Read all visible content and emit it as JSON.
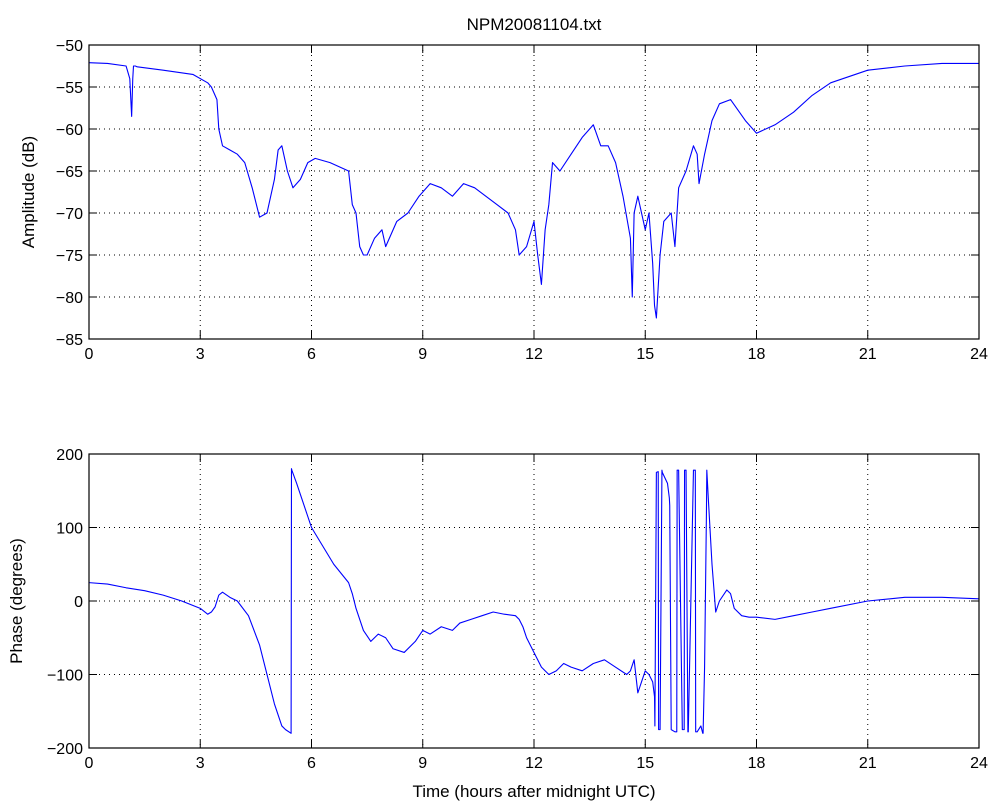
{
  "chart_data": [
    {
      "type": "line",
      "title": "NPM20081104.txt",
      "xlabel": "",
      "ylabel": "Amplitude (dB)",
      "xlim": [
        0,
        24
      ],
      "ylim": [
        -85,
        -50
      ],
      "xticks": [
        0,
        3,
        6,
        9,
        12,
        15,
        18,
        21,
        24
      ],
      "yticks": [
        -85,
        -80,
        -75,
        -70,
        -65,
        -60,
        -55,
        -50
      ],
      "grid": true,
      "series": [
        {
          "name": "",
          "color": "#0000ff",
          "x": [
            0,
            0.5,
            1.0,
            1.1,
            1.15,
            1.18,
            1.2,
            1.25,
            1.3,
            2.0,
            2.8,
            3.2,
            3.3,
            3.4,
            3.45,
            3.5,
            3.6,
            3.8,
            4.0,
            4.2,
            4.4,
            4.6,
            4.8,
            5.0,
            5.1,
            5.2,
            5.35,
            5.5,
            5.7,
            5.9,
            6.1,
            6.5,
            7.0,
            7.1,
            7.2,
            7.25,
            7.3,
            7.4,
            7.5,
            7.7,
            7.9,
            8.0,
            8.3,
            8.6,
            8.9,
            9.2,
            9.5,
            9.8,
            10.1,
            10.4,
            10.7,
            11.0,
            11.3,
            11.5,
            11.6,
            11.8,
            12.0,
            12.1,
            12.2,
            12.3,
            12.4,
            12.5,
            12.7,
            13.0,
            13.3,
            13.6,
            13.8,
            14.0,
            14.2,
            14.4,
            14.6,
            14.65,
            14.7,
            14.8,
            15.0,
            15.1,
            15.2,
            15.25,
            15.3,
            15.4,
            15.5,
            15.7,
            15.8,
            15.9,
            16.1,
            16.3,
            16.4,
            16.45,
            16.6,
            16.8,
            17.0,
            17.3,
            17.7,
            18.0,
            18.5,
            19.0,
            19.5,
            20.0,
            21.0,
            22.0,
            23.0,
            24.0
          ],
          "y": [
            -52.1,
            -52.2,
            -52.5,
            -54,
            -58.5,
            -54,
            -52.5,
            -52.5,
            -52.6,
            -53,
            -53.5,
            -54.5,
            -55,
            -56,
            -56.5,
            -60,
            -62,
            -62.5,
            -63,
            -64,
            -67,
            -70.5,
            -70,
            -66,
            -62.5,
            -62,
            -65,
            -67,
            -66,
            -64,
            -63.5,
            -64,
            -65,
            -69,
            -70,
            -72,
            -74,
            -75,
            -75,
            -73,
            -72,
            -74,
            -71,
            -70,
            -68,
            -66.5,
            -67,
            -68,
            -66.5,
            -67,
            -68,
            -69,
            -70,
            -72,
            -75,
            -74,
            -71,
            -75,
            -78.5,
            -72,
            -69,
            -64,
            -65,
            -63,
            -61,
            -59.5,
            -62,
            -62,
            -64,
            -68,
            -73,
            -80,
            -70,
            -68,
            -72,
            -70,
            -76,
            -81,
            -82.5,
            -75,
            -71,
            -70,
            -74,
            -67,
            -65,
            -62,
            -63,
            -66.5,
            -63,
            -59,
            -57,
            -56.5,
            -59,
            -60.5,
            -59.5,
            -58,
            -56,
            -54.5,
            -53,
            -52.5,
            -52.2,
            -52.2
          ]
        }
      ]
    },
    {
      "type": "line",
      "title": "",
      "xlabel": "Time (hours after midnight UTC)",
      "ylabel": "Phase (degrees)",
      "xlim": [
        0,
        24
      ],
      "ylim": [
        -200,
        200
      ],
      "xticks": [
        0,
        3,
        6,
        9,
        12,
        15,
        18,
        21,
        24
      ],
      "yticks": [
        -200,
        -100,
        0,
        100,
        200
      ],
      "grid": true,
      "series": [
        {
          "name": "",
          "color": "#0000ff",
          "x": [
            0,
            0.5,
            1.0,
            1.5,
            2.0,
            2.5,
            3.0,
            3.2,
            3.3,
            3.4,
            3.5,
            3.6,
            3.8,
            4.0,
            4.3,
            4.6,
            4.8,
            5.0,
            5.2,
            5.3,
            5.45,
            5.46,
            5.47,
            5.6,
            5.8,
            6.0,
            6.3,
            6.6,
            7.0,
            7.1,
            7.2,
            7.4,
            7.6,
            7.8,
            8.0,
            8.2,
            8.5,
            8.8,
            9.0,
            9.2,
            9.5,
            9.8,
            10.0,
            10.3,
            10.6,
            10.9,
            11.2,
            11.5,
            11.6,
            11.7,
            11.8,
            12.0,
            12.2,
            12.4,
            12.6,
            12.8,
            13.0,
            13.3,
            13.6,
            13.9,
            14.2,
            14.5,
            14.6,
            14.7,
            14.8,
            14.9,
            15.0,
            15.1,
            15.2,
            15.25,
            15.26,
            15.3,
            15.35,
            15.36,
            15.4,
            15.45,
            15.46,
            15.6,
            15.65,
            15.66,
            15.7,
            15.8,
            15.85,
            15.86,
            15.9,
            16.0,
            16.05,
            16.06,
            16.1,
            16.15,
            16.16,
            16.3,
            16.35,
            16.36,
            16.4,
            16.5,
            16.55,
            16.56,
            16.6,
            16.65,
            16.66,
            16.7,
            16.8,
            16.9,
            17.0,
            17.2,
            17.3,
            17.4,
            17.6,
            17.8,
            18.0,
            18.5,
            19.0,
            19.5,
            20.0,
            21.0,
            22.0,
            23.0,
            24.0
          ],
          "y": [
            25,
            23,
            18,
            14,
            8,
            0,
            -10,
            -18,
            -15,
            -8,
            8,
            12,
            5,
            0,
            -20,
            -60,
            -100,
            -140,
            -170,
            -175,
            -180,
            180,
            178,
            160,
            130,
            100,
            75,
            50,
            25,
            10,
            -10,
            -40,
            -55,
            -45,
            -50,
            -65,
            -70,
            -55,
            -40,
            -45,
            -35,
            -40,
            -30,
            -25,
            -20,
            -15,
            -18,
            -20,
            -25,
            -35,
            -50,
            -70,
            -90,
            -100,
            -95,
            -85,
            -90,
            -95,
            -85,
            -80,
            -90,
            -100,
            -95,
            -80,
            -125,
            -110,
            -95,
            -100,
            -110,
            -130,
            -170,
            175,
            176,
            -175,
            -175,
            178,
            175,
            160,
            140,
            130,
            -175,
            -178,
            -178,
            178,
            178,
            -175,
            -175,
            178,
            178,
            -178,
            -178,
            178,
            178,
            -178,
            -178,
            -170,
            -180,
            -180,
            -90,
            120,
            178,
            140,
            50,
            -15,
            0,
            15,
            10,
            -10,
            -20,
            -22,
            -22,
            -25,
            -20,
            -15,
            -10,
            0,
            5,
            5,
            3
          ]
        }
      ]
    }
  ]
}
